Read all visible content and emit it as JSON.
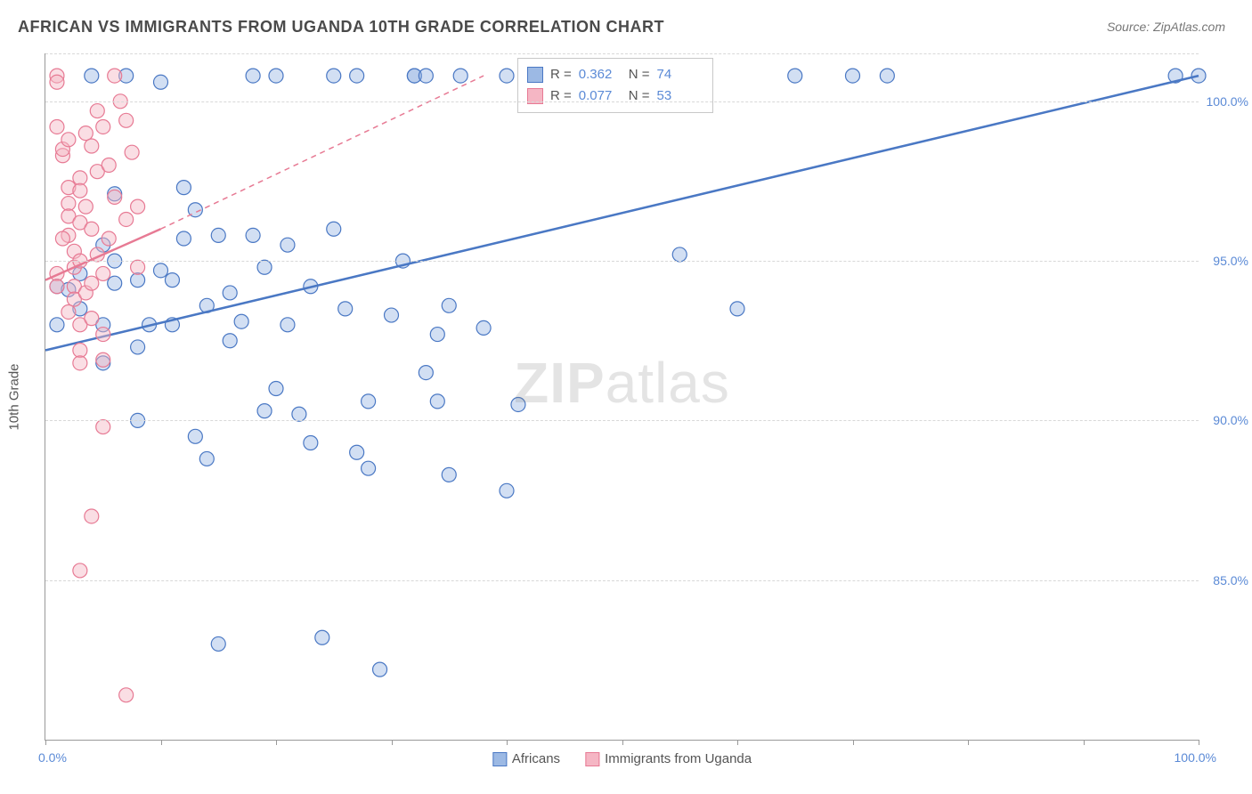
{
  "title": "AFRICAN VS IMMIGRANTS FROM UGANDA 10TH GRADE CORRELATION CHART",
  "source_label": "Source: ZipAtlas.com",
  "watermark": "ZIPatlas",
  "chart": {
    "type": "scatter",
    "background_color": "#ffffff",
    "grid_color": "#d8d8d8",
    "axis_color": "#999999",
    "marker_radius": 8,
    "xlim": [
      0,
      100
    ],
    "ylim": [
      80,
      101.5
    ],
    "y_axis": {
      "label": "10th Grade",
      "ticks": [
        85.0,
        90.0,
        95.0,
        100.0,
        101.5
      ],
      "tick_labels": [
        "85.0%",
        "90.0%",
        "95.0%",
        "100.0%"
      ],
      "label_color": "#5b8ad6",
      "label_fontsize": 14
    },
    "x_axis": {
      "tick_positions": [
        0,
        10,
        20,
        30,
        40,
        50,
        60,
        70,
        80,
        90,
        100
      ],
      "min_label": "0.0%",
      "max_label": "100.0%",
      "label_color": "#5b8ad6",
      "label_fontsize": 14
    },
    "series": [
      {
        "name": "Africans",
        "fill_color": "#9cb9e4",
        "stroke_color": "#4a78c4",
        "r_value": "0.362",
        "n_value": "74",
        "trend_solid": {
          "x1": 0,
          "y1": 92.2,
          "x2": 100,
          "y2": 100.8
        },
        "points": [
          [
            1,
            94.2
          ],
          [
            1,
            93.0
          ],
          [
            2,
            94.1
          ],
          [
            3,
            94.6
          ],
          [
            3,
            93.5
          ],
          [
            4,
            100.8
          ],
          [
            5,
            95.5
          ],
          [
            5,
            91.8
          ],
          [
            6,
            97.1
          ],
          [
            6,
            94.3
          ],
          [
            7,
            100.8
          ],
          [
            8,
            90.0
          ],
          [
            8,
            94.4
          ],
          [
            9,
            93.0
          ],
          [
            10,
            100.6
          ],
          [
            10,
            94.7
          ],
          [
            11,
            93.0
          ],
          [
            11,
            94.4
          ],
          [
            12,
            97.3
          ],
          [
            13,
            96.6
          ],
          [
            13,
            89.5
          ],
          [
            14,
            93.6
          ],
          [
            15,
            95.8
          ],
          [
            15,
            83.0
          ],
          [
            16,
            94.0
          ],
          [
            17,
            93.1
          ],
          [
            18,
            100.8
          ],
          [
            18,
            95.8
          ],
          [
            19,
            94.8
          ],
          [
            20,
            91.0
          ],
          [
            20,
            100.8
          ],
          [
            21,
            95.5
          ],
          [
            21,
            93.0
          ],
          [
            22,
            90.2
          ],
          [
            23,
            94.2
          ],
          [
            23,
            89.3
          ],
          [
            24,
            83.2
          ],
          [
            25,
            96.0
          ],
          [
            25,
            100.8
          ],
          [
            26,
            93.5
          ],
          [
            27,
            89.0
          ],
          [
            27,
            100.8
          ],
          [
            28,
            88.5
          ],
          [
            28,
            90.6
          ],
          [
            29,
            82.2
          ],
          [
            30,
            93.3
          ],
          [
            31,
            95.0
          ],
          [
            32,
            100.8
          ],
          [
            32,
            100.8
          ],
          [
            33,
            100.8
          ],
          [
            33,
            91.5
          ],
          [
            34,
            92.7
          ],
          [
            34,
            90.6
          ],
          [
            35,
            88.3
          ],
          [
            35,
            93.6
          ],
          [
            36,
            100.8
          ],
          [
            38,
            92.9
          ],
          [
            40,
            87.8
          ],
          [
            40,
            100.8
          ],
          [
            41,
            90.5
          ],
          [
            55,
            95.2
          ],
          [
            60,
            93.5
          ],
          [
            65,
            100.8
          ],
          [
            70,
            100.8
          ],
          [
            73,
            100.8
          ],
          [
            98,
            100.8
          ],
          [
            100,
            100.8
          ],
          [
            5,
            93.0
          ],
          [
            6,
            95.0
          ],
          [
            8,
            92.3
          ],
          [
            12,
            95.7
          ],
          [
            14,
            88.8
          ],
          [
            16,
            92.5
          ],
          [
            19,
            90.3
          ]
        ]
      },
      {
        "name": "Immigrants from Uganda",
        "fill_color": "#f5b6c4",
        "stroke_color": "#e77a94",
        "r_value": "0.077",
        "n_value": "53",
        "trend_solid": {
          "x1": 0,
          "y1": 94.4,
          "x2": 10,
          "y2": 96.0
        },
        "trend_dashed": {
          "x1": 10,
          "y1": 96.0,
          "x2": 38,
          "y2": 100.8
        },
        "points": [
          [
            1,
            100.8
          ],
          [
            1,
            100.6
          ],
          [
            1,
            99.2
          ],
          [
            1.5,
            98.3
          ],
          [
            1.5,
            98.5
          ],
          [
            2,
            98.8
          ],
          [
            2,
            97.3
          ],
          [
            2,
            96.8
          ],
          [
            2,
            96.4
          ],
          [
            2,
            95.8
          ],
          [
            2.5,
            95.3
          ],
          [
            2.5,
            94.8
          ],
          [
            2.5,
            94.2
          ],
          [
            2.5,
            93.8
          ],
          [
            3,
            97.6
          ],
          [
            3,
            97.2
          ],
          [
            3,
            96.2
          ],
          [
            3,
            95.0
          ],
          [
            3,
            93.0
          ],
          [
            3,
            92.2
          ],
          [
            3.5,
            99.0
          ],
          [
            3.5,
            96.7
          ],
          [
            3.5,
            94.0
          ],
          [
            4,
            98.6
          ],
          [
            4,
            96.0
          ],
          [
            4,
            94.3
          ],
          [
            4,
            93.2
          ],
          [
            4.5,
            99.7
          ],
          [
            4.5,
            97.8
          ],
          [
            4.5,
            95.2
          ],
          [
            5,
            99.2
          ],
          [
            5,
            94.6
          ],
          [
            5,
            92.7
          ],
          [
            5,
            91.9
          ],
          [
            5,
            89.8
          ],
          [
            5.5,
            98.0
          ],
          [
            5.5,
            95.7
          ],
          [
            6,
            100.8
          ],
          [
            6,
            97.0
          ],
          [
            6.5,
            100.0
          ],
          [
            7,
            99.4
          ],
          [
            7,
            96.3
          ],
          [
            7.5,
            98.4
          ],
          [
            8,
            96.7
          ],
          [
            8,
            94.8
          ],
          [
            1,
            94.6
          ],
          [
            1,
            94.2
          ],
          [
            1.5,
            95.7
          ],
          [
            4,
            87.0
          ],
          [
            3,
            85.3
          ],
          [
            7,
            81.4
          ],
          [
            2,
            93.4
          ],
          [
            3,
            91.8
          ]
        ]
      }
    ],
    "legend_bottom": [
      {
        "label": "Africans",
        "fill": "#9cb9e4",
        "stroke": "#4a78c4"
      },
      {
        "label": "Immigrants from Uganda",
        "fill": "#f5b6c4",
        "stroke": "#e77a94"
      }
    ],
    "stats_box": {
      "r_label": "R =",
      "n_label": "N ="
    }
  }
}
